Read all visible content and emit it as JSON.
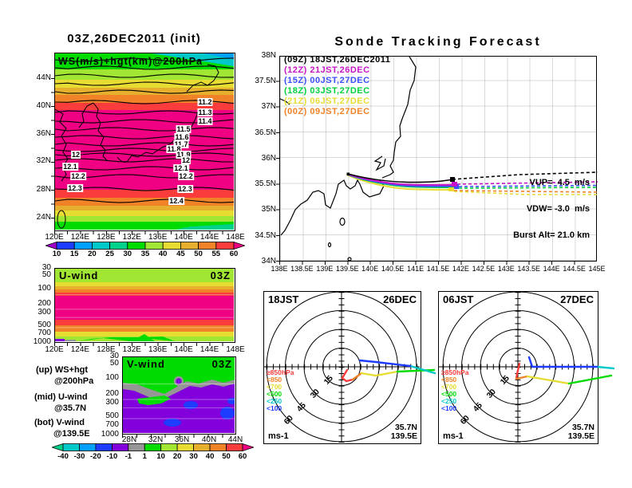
{
  "panelA": {
    "title": "03Z,26DEC2011 (init)",
    "field_label": "WS(m/s)+hgt(km)@200hPa",
    "lat_labels": [
      "44N",
      "40N",
      "36N",
      "32N",
      "28N",
      "24N"
    ],
    "lon_labels": [
      "120E",
      "124E",
      "128E",
      "132E",
      "136E",
      "140E",
      "144E",
      "148E"
    ],
    "right_labels": [
      "11.2",
      "11.3",
      "11.4",
      "11.5",
      "11.6",
      "11.7",
      "11.8",
      "11.9",
      "12",
      "12.1",
      "12.2",
      "12.3",
      "12.4"
    ],
    "left_labels": [
      "12",
      "12.1",
      "12.2",
      "12.3"
    ],
    "cbar_ticks": [
      "10",
      "15",
      "20",
      "25",
      "30",
      "35",
      "40",
      "45",
      "50",
      "55",
      "60"
    ]
  },
  "panelB": {
    "title": "Sonde Tracking Forecast",
    "legend": [
      {
        "label": "(09Z) 18JST,26DEC2011",
        "color": "#000000"
      },
      {
        "label": "(12Z) 21JST,26DEC",
        "color": "#c814c8"
      },
      {
        "label": "(15Z) 00JST,27DEC",
        "color": "#3c50ff"
      },
      {
        "label": "(18Z) 03JST,27DEC",
        "color": "#00d23c"
      },
      {
        "label": "(21Z) 06JST,27DEC",
        "color": "#e6dc32"
      },
      {
        "label": "(00Z) 09JST,27DEC",
        "color": "#f08228"
      }
    ],
    "lat_labels": [
      "38N",
      "37.5N",
      "37N",
      "36.5N",
      "36N",
      "35.5N",
      "35N",
      "34.5N",
      "34N"
    ],
    "lon_labels": [
      "138E",
      "138.5E",
      "139E",
      "139.5E",
      "140E",
      "140.5E",
      "141E",
      "141.5E",
      "142E",
      "142.5E",
      "143E",
      "143.5E",
      "144E",
      "144.5E",
      "145E"
    ],
    "vup": "VUP=  4.5  m/s",
    "vdw": "VDW= -3.0  m/s",
    "burst": "Burst Alt= 21.0 km"
  },
  "panelC": {
    "label": "U-wind",
    "time": "03Z",
    "p_labels": [
      "30",
      "50",
      "100",
      "200",
      "300",
      "500",
      "700",
      "1000"
    ],
    "lon_labels": [
      "120E",
      "124E",
      "128E",
      "132E",
      "136E",
      "140E",
      "144E",
      "148E"
    ]
  },
  "panelD": {
    "label": "V-wind",
    "time": "03Z",
    "p_labels": [
      "30",
      "50",
      "100",
      "200",
      "300",
      "500",
      "700",
      "1000"
    ],
    "lat_labels": [
      "28N",
      "32N",
      "36N",
      "40N",
      "44N"
    ],
    "notes": [
      "(up) WS+hgt",
      "@200hPa",
      "(mid) U-wind",
      "@35.7N",
      "(bot) V-wind",
      "@139.5E"
    ],
    "cbar_ticks": [
      "-40",
      "-30",
      "-20",
      "-10",
      "-1",
      "1",
      "10",
      "20",
      "30",
      "40",
      "50",
      "60"
    ]
  },
  "hodo": {
    "legend": [
      "≥850hPa",
      "<850",
      "<700",
      "<500",
      "<250",
      "<100"
    ],
    "legend_colors": [
      "#fa3c3c",
      "#f08228",
      "#e6dc32",
      "#00dc00",
      "#00c8c8",
      "#1e3cff"
    ],
    "rings": [
      "15",
      "30",
      "45",
      "60"
    ],
    "unit": "ms-1",
    "lat": "35.7N",
    "lon": "139.5E",
    "left": {
      "time": "18JST",
      "date": "26DEC"
    },
    "right": {
      "time": "06JST",
      "date": "27DEC"
    }
  },
  "chart_data": [
    {
      "type": "heatmap",
      "panel": "upper-left",
      "title": "03Z,26DEC2011 (init)",
      "field": "WS(m/s)+hgt(km)@200hPa",
      "x_ticks": [
        "120E",
        "124E",
        "128E",
        "132E",
        "136E",
        "140E",
        "144E",
        "148E"
      ],
      "y_ticks": [
        "24N",
        "28N",
        "32N",
        "36N",
        "40N",
        "44N"
      ],
      "height_contours_km": [
        11.2,
        11.3,
        11.4,
        11.5,
        11.6,
        11.7,
        11.8,
        11.9,
        12,
        12.1,
        12.2,
        12.3,
        12.4
      ],
      "colorbar_ms": [
        10,
        15,
        20,
        25,
        30,
        35,
        40,
        45,
        50,
        55,
        60
      ],
      "colorbar_colors": [
        "#a000c8",
        "#1e3cff",
        "#00a0ff",
        "#00c8c8",
        "#00d28c",
        "#00dc00",
        "#a0e632",
        "#e6dc32",
        "#e6af2d",
        "#f08228",
        "#fa3c3c",
        "#f00082"
      ]
    },
    {
      "type": "line",
      "panel": "upper-right",
      "title": "Sonde Tracking Forecast",
      "x_range_deg_e": [
        138,
        145
      ],
      "y_range_deg_n": [
        34,
        38
      ],
      "launch_point": {
        "lon_e": 139.5,
        "lat_n": 35.7
      },
      "burst_marker_lon_e": 142.0,
      "series": [
        {
          "name": "(09Z) 18JST,26DEC2011",
          "color": "#000000",
          "solid_to_lon": 142.0,
          "dashed_end": {
            "lon": 145.0,
            "lat": 35.75
          }
        },
        {
          "name": "(12Z) 21JST,26DEC",
          "color": "#c814c8",
          "solid_to_lon": 142.0,
          "dashed_end": {
            "lon": 145.0,
            "lat": 35.6
          }
        },
        {
          "name": "(15Z) 00JST,27DEC",
          "color": "#3c50ff",
          "solid_to_lon": 142.0,
          "dashed_end": {
            "lon": 145.0,
            "lat": 35.55
          }
        },
        {
          "name": "(18Z) 03JST,27DEC",
          "color": "#00d23c",
          "solid_to_lon": 142.0,
          "dashed_end": {
            "lon": 145.0,
            "lat": 35.52
          }
        },
        {
          "name": "(21Z) 06JST,27DEC",
          "color": "#e6dc32",
          "solid_to_lon": 142.0,
          "dashed_end": {
            "lon": 145.0,
            "lat": 35.38
          }
        },
        {
          "name": "(00Z) 09JST,27DEC",
          "color": "#f08228",
          "solid_to_lon": 142.0,
          "dashed_end": {
            "lon": 145.0,
            "lat": 35.42
          }
        }
      ],
      "annotations": {
        "VUP_ms": 4.5,
        "VDW_ms": -3.0,
        "burst_alt_km": 21.0
      }
    },
    {
      "type": "heatmap",
      "panel": "middle-left",
      "title": "U-wind 03Z",
      "section": "U-wind at 35.7N",
      "x_ticks": [
        "120E",
        "124E",
        "128E",
        "132E",
        "136E",
        "140E",
        "144E",
        "148E"
      ],
      "y_ticks_hPa": [
        30,
        50,
        100,
        200,
        300,
        500,
        700,
        1000
      ]
    },
    {
      "type": "heatmap",
      "panel": "bottom-left",
      "title": "V-wind 03Z",
      "section": "V-wind at 139.5E",
      "x_ticks": [
        "28N",
        "32N",
        "36N",
        "40N",
        "44N"
      ],
      "y_ticks_hPa": [
        30,
        50,
        100,
        200,
        300,
        500,
        700,
        1000
      ],
      "colorbar_ms": [
        -40,
        -30,
        -20,
        -10,
        -1,
        1,
        10,
        20,
        30,
        40,
        50,
        60
      ],
      "colorbar_colors": [
        "#00d28c",
        "#00c8c8",
        "#00a0ff",
        "#1e3cff",
        "#8200dc",
        "#969696",
        "#00dc00",
        "#a0e632",
        "#e6dc32",
        "#e6af2d",
        "#f08228",
        "#fa3c3c",
        "#f00082"
      ]
    },
    {
      "type": "line",
      "panel": "hodograph-left",
      "title": "18JST 26DEC",
      "rings_ms": [
        15,
        30,
        45,
        60
      ],
      "unit": "ms-1",
      "station": "35.7N 139.5E",
      "levels": [
        "≥850hPa",
        "<850",
        "<700",
        "<500",
        "<250",
        "<100"
      ],
      "level_colors": [
        "#fa3c3c",
        "#f08228",
        "#e6dc32",
        "#00dc00",
        "#00c8c8",
        "#1e3cff"
      ]
    },
    {
      "type": "line",
      "panel": "hodograph-right",
      "title": "06JST 27DEC",
      "rings_ms": [
        15,
        30,
        45,
        60
      ],
      "unit": "ms-1",
      "station": "35.7N 139.5E",
      "levels": [
        "≥850hPa",
        "<850",
        "<700",
        "<500",
        "<250",
        "<100"
      ],
      "level_colors": [
        "#fa3c3c",
        "#f08228",
        "#e6dc32",
        "#00dc00",
        "#00c8c8",
        "#1e3cff"
      ]
    }
  ]
}
